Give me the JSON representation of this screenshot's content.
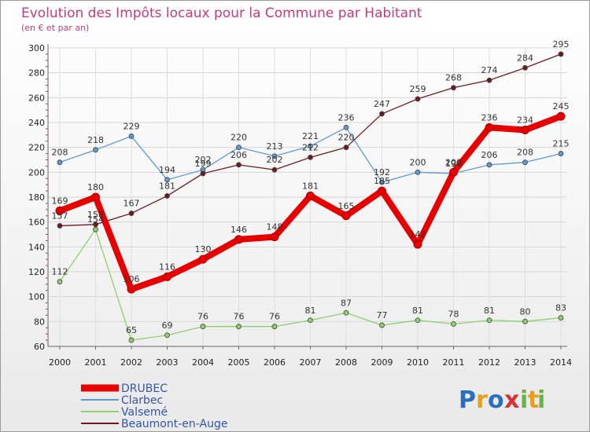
{
  "chart_data": {
    "type": "line",
    "title": "Evolution des Impôts locaux pour la Commune par Habitant",
    "subtitle": "(en € et par an)",
    "x": [
      "2000",
      "2001",
      "2002",
      "2003",
      "2004",
      "2005",
      "2006",
      "2007",
      "2008",
      "2009",
      "2010",
      "2011",
      "2012",
      "2013",
      "2014"
    ],
    "ylim": [
      60,
      300
    ],
    "yticks": [
      60,
      80,
      100,
      120,
      140,
      160,
      180,
      200,
      220,
      240,
      260,
      280,
      300
    ],
    "grid": true,
    "legend_position": "bottom-left",
    "series": [
      {
        "name": "DRUBEC",
        "color": "#e60000",
        "values": [
          169,
          180,
          106,
          116,
          130,
          146,
          148,
          181,
          165,
          185,
          142,
          200,
          236,
          234,
          245
        ]
      },
      {
        "name": "Clarbec",
        "color": "#5f9ad0",
        "values": [
          208,
          218,
          229,
          194,
          202,
          220,
          213,
          221,
          236,
          192,
          200,
          199,
          206,
          208,
          215
        ]
      },
      {
        "name": "Valsemé",
        "color": "#8ed06a",
        "values": [
          112,
          154,
          65,
          69,
          76,
          76,
          76,
          81,
          87,
          77,
          81,
          78,
          81,
          80,
          83
        ]
      },
      {
        "name": "Beaumont-en-Auge",
        "color": "#6e1a22",
        "values": [
          157,
          158,
          167,
          181,
          199,
          206,
          202,
          212,
          220,
          247,
          259,
          268,
          274,
          284,
          295
        ]
      }
    ]
  },
  "logo": {
    "letters": [
      "P",
      "r",
      "o",
      "x",
      "i",
      "t",
      "i"
    ],
    "colors": [
      "#2a6fbf",
      "#e6a020",
      "#2a6fbf",
      "#d93030",
      "#6ab04c",
      "#e6a020",
      "#6ab04c"
    ]
  }
}
